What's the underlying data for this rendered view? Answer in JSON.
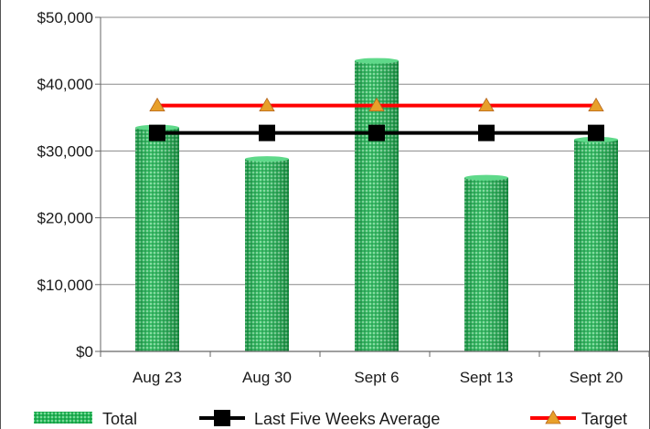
{
  "chart_data": {
    "type": "bar",
    "categories": [
      "Aug 23",
      "Aug 30",
      "Sept 6",
      "Sept 13",
      "Sept 20"
    ],
    "series": [
      {
        "name": "Total",
        "kind": "bar",
        "values": [
          33500,
          28800,
          43500,
          26000,
          31700
        ],
        "color": "#21a84f"
      },
      {
        "name": "Last Five Weeks Average",
        "kind": "line",
        "marker": "square",
        "values": [
          32700,
          32700,
          32700,
          32700,
          32700
        ],
        "color": "#000000"
      },
      {
        "name": "Target",
        "kind": "line",
        "marker": "triangle",
        "values": [
          36800,
          36800,
          36800,
          36800,
          36800
        ],
        "color": "#ff0000",
        "marker_color": "#e8a02a"
      }
    ],
    "y_ticks": [
      "$0",
      "$10,000",
      "$20,000",
      "$30,000",
      "$40,000",
      "$50,000"
    ],
    "ylim": [
      0,
      50000
    ],
    "grid": true,
    "legend": "bottom"
  }
}
